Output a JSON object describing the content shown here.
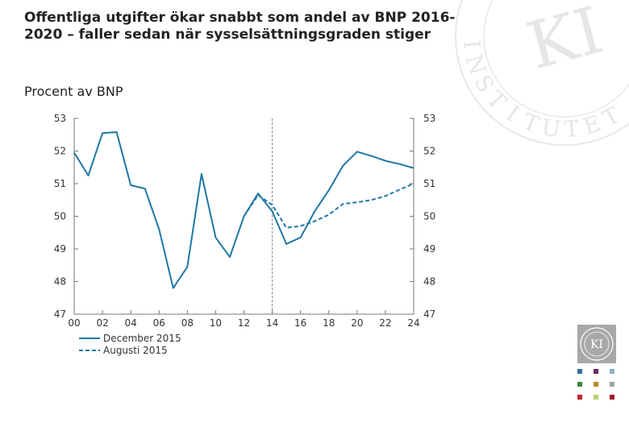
{
  "title": "Offentliga utgifter ökar snabbt som andel av BNP 2016-2020 – faller sedan när sysselsättningsgraden stiger",
  "subtitle": "Procent av BNP",
  "colors": {
    "series": "#1f77a6",
    "axis": "#777777",
    "divider": "#888888",
    "watermark": "#e8e8e8"
  },
  "watermark": {
    "letters": "INSTITUTET",
    "monogram": "KI"
  },
  "chart_data": {
    "type": "line",
    "title": "Offentliga utgifter ökar snabbt som andel av BNP 2016-2020 – faller sedan när sysselsättningsgraden stiger",
    "ylabel": "Procent av BNP",
    "xlabel": "",
    "xlim": [
      0,
      24
    ],
    "ylim": [
      47,
      53
    ],
    "x_ticks": [
      0,
      2,
      4,
      6,
      8,
      10,
      12,
      14,
      16,
      18,
      20,
      22,
      24
    ],
    "x_tick_labels": [
      "00",
      "02",
      "04",
      "06",
      "08",
      "10",
      "12",
      "14",
      "16",
      "18",
      "20",
      "22",
      "24"
    ],
    "y_ticks": [
      47,
      48,
      49,
      50,
      51,
      52,
      53
    ],
    "forecast_divider_x": 14,
    "grid": false,
    "legend_position": "bottom-left",
    "series": [
      {
        "name": "December 2015",
        "style": "solid",
        "x": [
          0,
          1,
          2,
          3,
          4,
          5,
          6,
          7,
          8,
          9,
          10,
          11,
          12,
          13,
          14,
          15,
          16,
          17,
          18,
          19,
          20,
          21,
          22,
          23,
          24
        ],
        "y": [
          51.95,
          51.25,
          52.55,
          52.58,
          50.95,
          50.85,
          49.6,
          47.8,
          48.45,
          51.3,
          49.35,
          48.75,
          50.0,
          50.7,
          50.15,
          49.15,
          49.35,
          50.15,
          50.8,
          51.55,
          51.98,
          51.85,
          51.7,
          51.6,
          51.48
        ]
      },
      {
        "name": "Augusti 2015",
        "style": "dashed",
        "x": [
          12,
          13,
          14,
          15,
          16,
          17,
          18,
          19,
          20,
          21,
          22,
          23,
          24
        ],
        "y": [
          50.0,
          50.65,
          50.35,
          49.65,
          49.7,
          49.85,
          50.05,
          50.38,
          50.43,
          50.5,
          50.62,
          50.82,
          51.0
        ]
      }
    ]
  },
  "side_logo": {
    "monogram": "KI"
  },
  "swatch_colors": [
    "#2f6fa0",
    "#6a2b5e",
    "#8fb0c8",
    "#3b8a3a",
    "#c08a20",
    "#9aa2a8",
    "#c0262e",
    "#b7cf6a",
    "#a21a2a"
  ]
}
